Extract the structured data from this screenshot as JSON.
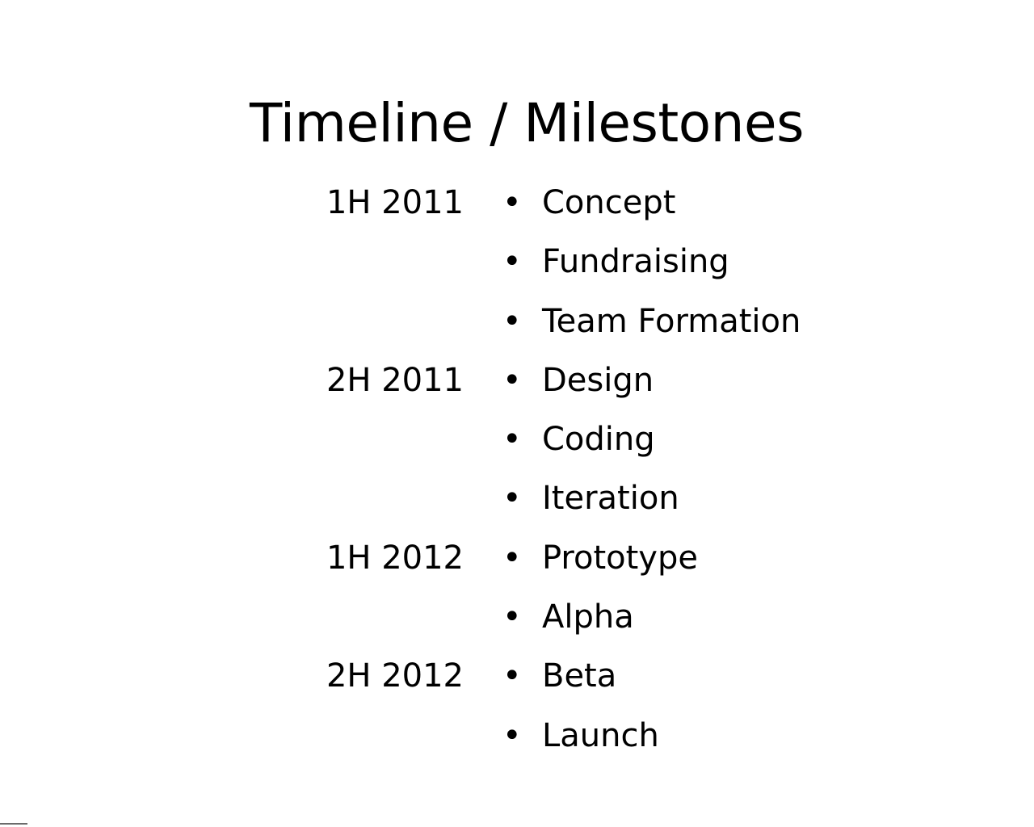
{
  "slide": {
    "title": "Timeline / Milestones",
    "bullet_glyph": "•",
    "rows": [
      {
        "period": "1H 2011",
        "item": "Concept"
      },
      {
        "period": "",
        "item": "Fundraising"
      },
      {
        "period": "",
        "item": "Team Formation"
      },
      {
        "period": "2H 2011",
        "item": "Design"
      },
      {
        "period": "",
        "item": "Coding"
      },
      {
        "period": "",
        "item": "Iteration"
      },
      {
        "period": "1H 2012",
        "item": "Prototype"
      },
      {
        "period": "",
        "item": "Alpha"
      },
      {
        "period": "2H 2012",
        "item": "Beta"
      },
      {
        "period": "",
        "item": "Launch"
      }
    ]
  },
  "colors": {
    "background": "#ffffff",
    "text": "#000000"
  }
}
